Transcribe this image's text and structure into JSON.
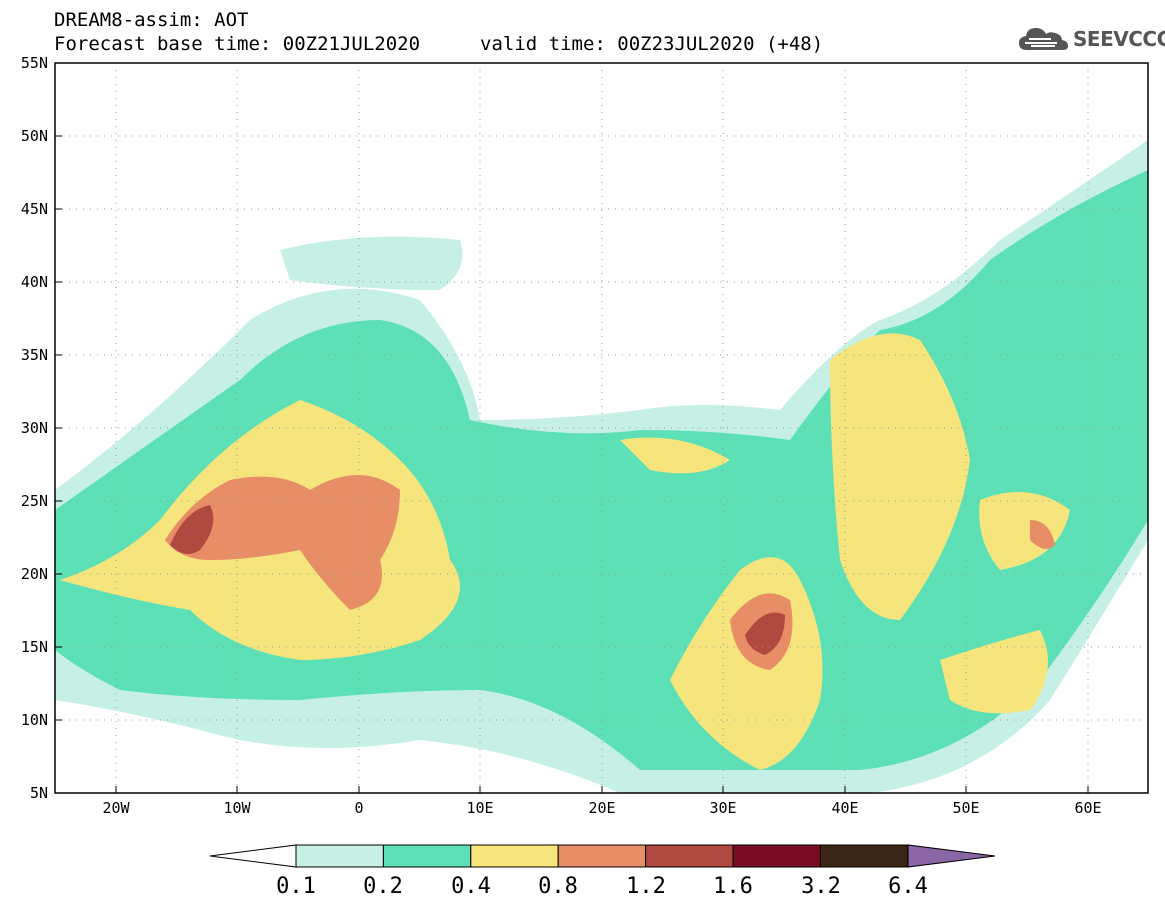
{
  "header": {
    "title": "DREAM8-assim: AOT",
    "forecast_base": "Forecast base time: 00Z21JUL2020",
    "valid_time": "valid time: 00Z23JUL2020 (+48)"
  },
  "logo": {
    "text": "SEEVCCC",
    "icon": "cloud-icon"
  },
  "map": {
    "lat_labels": [
      "55N",
      "50N",
      "45N",
      "40N",
      "35N",
      "30N",
      "25N",
      "20N",
      "15N",
      "10N",
      "5N"
    ],
    "lon_labels": [
      "20W",
      "10W",
      "0",
      "10E",
      "20E",
      "30E",
      "40E",
      "50E",
      "60E"
    ],
    "lon_range": [
      -25,
      65
    ],
    "lat_range": [
      5,
      55
    ]
  },
  "colorbar": {
    "levels": [
      "0.1",
      "0.2",
      "0.4",
      "0.8",
      "1.2",
      "1.6",
      "3.2",
      "6.4"
    ],
    "colors": [
      "#c6f0e6",
      "#5ee0b7",
      "#f5e57c",
      "#e88e67",
      "#b0493f",
      "#7a0b24",
      "#3b2615",
      "#8a66a6"
    ]
  }
}
